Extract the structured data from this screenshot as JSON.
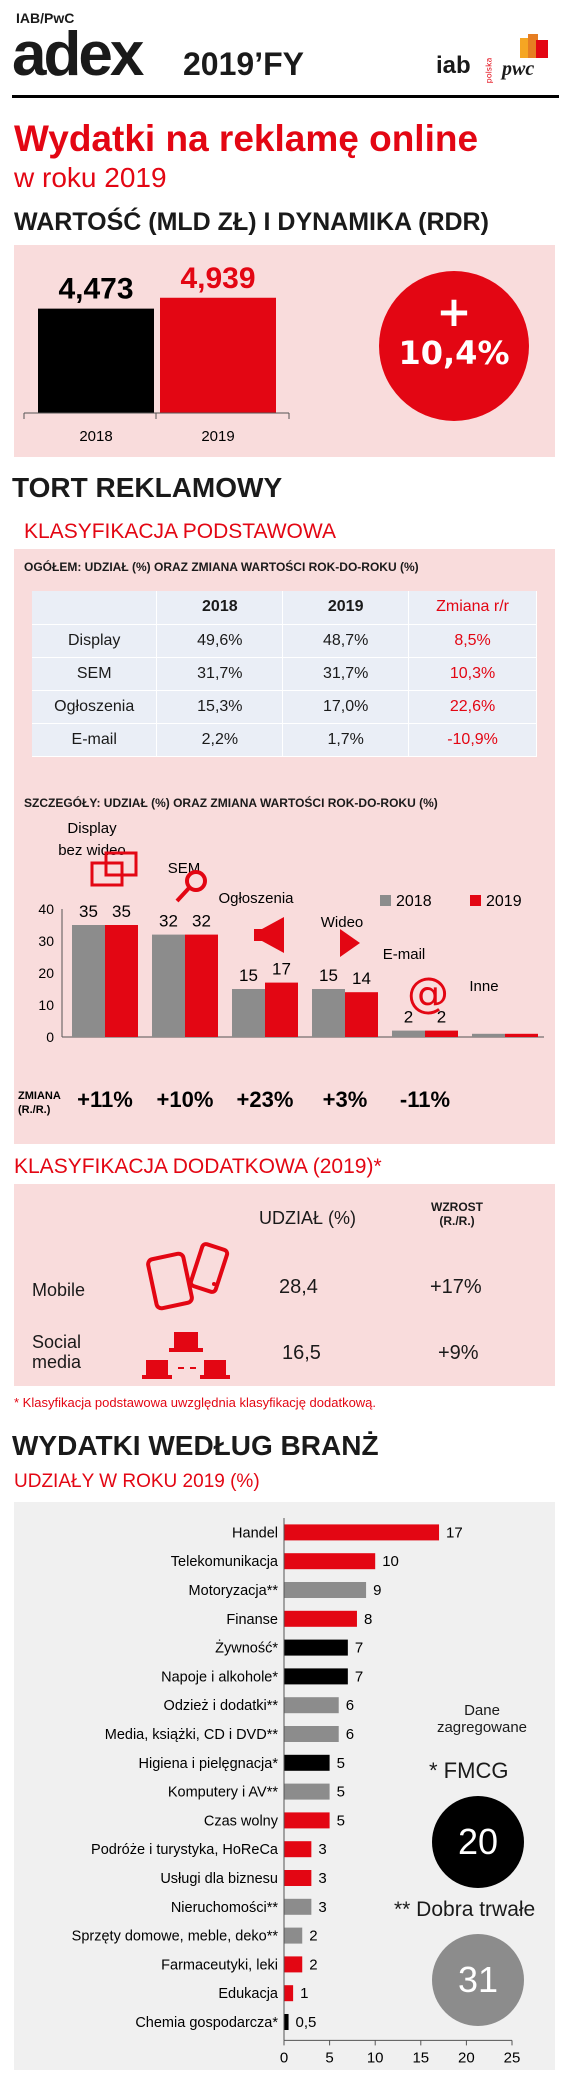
{
  "header": {
    "source": "IAB/PwC",
    "logo": "adex",
    "edition": "2019’FY",
    "iab_logo": "iab",
    "iab_sub": "polska",
    "pwc_logo": "pwc"
  },
  "main_title": "Wydatki na reklamę online",
  "main_subtitle": "w roku 2019",
  "value_section": {
    "title": "WARTOŚĆ (MLD ZŁ) I DYNAMIKA (RDR)",
    "bars": [
      {
        "year": "2018",
        "value": 4.473,
        "label": "4,473",
        "color": "#000000"
      },
      {
        "year": "2019",
        "value": 4.939,
        "label": "4,939",
        "color": "#e30613"
      }
    ],
    "growth_plus": "+",
    "growth_value": "10,4%"
  },
  "pie_section": {
    "title": "TORT REKLAMOWY",
    "basic_title": "KLASYFIKACJA PODSTAWOWA",
    "overall_title": "OGÓŁEM: UDZIAŁ (%) ORAZ ZMIANA WARTOŚCI ROK-DO-ROKU (%)",
    "table": {
      "headers": [
        "",
        "2018",
        "2019",
        "Zmiana r/r"
      ],
      "rows": [
        [
          "Display",
          "49,6%",
          "48,7%",
          "8,5%"
        ],
        [
          "SEM",
          "31,7%",
          "31,7%",
          "10,3%"
        ],
        [
          "Ogłoszenia",
          "15,3%",
          "17,0%",
          "22,6%"
        ],
        [
          "E-mail",
          "2,2%",
          "1,7%",
          "-10,9%"
        ]
      ]
    },
    "detail_title": "SZCZEGÓŁY: UDZIAŁ (%) ORAZ ZMIANA WARTOŚCI ROK-DO-ROKU (%)",
    "change_label_1": "ZMIANA",
    "change_label_2": "(R./R.)"
  },
  "chart_data": [
    {
      "type": "bar",
      "categories": [
        "2018",
        "2019"
      ],
      "values": [
        4.473,
        4.939
      ],
      "title": "WARTOŚĆ (MLD ZŁ) I DYNAMIKA (RDR)"
    },
    {
      "type": "bar",
      "categories": [
        "Display bez wideo",
        "SEM",
        "Ogłoszenia",
        "Wideo",
        "E-mail",
        "Inne"
      ],
      "category_labels": [
        [
          "Display",
          "bez wideo"
        ],
        [
          "SEM"
        ],
        [
          "Ogłoszenia"
        ],
        [
          "Wideo"
        ],
        [
          "E-mail"
        ],
        [
          "Inne"
        ]
      ],
      "series": [
        {
          "name": "2018",
          "color": "#8c8c8c",
          "values": [
            35,
            32,
            15,
            15,
            2,
            1
          ],
          "labels": [
            "35",
            "32",
            "15",
            "15",
            "2",
            ""
          ]
        },
        {
          "name": "2019",
          "color": "#e30613",
          "values": [
            35,
            32,
            17,
            14,
            2,
            1
          ],
          "labels": [
            "35",
            "32",
            "17",
            "14",
            "2",
            ""
          ]
        }
      ],
      "changes": [
        "+11%",
        "+10%",
        "+23%",
        "+3%",
        "-11%",
        ""
      ],
      "ylim": [
        0,
        40
      ],
      "yticks": [
        "0",
        "10",
        "20",
        "30",
        "40"
      ],
      "title": "SZCZEGÓŁY: UDZIAŁ (%) ORAZ ZMIANA WARTOŚCI ROK-DO-ROKU (%)",
      "legend": "top-right"
    },
    {
      "type": "bar",
      "orientation": "horizontal",
      "title": "UDZIAŁY W ROKU 2019 (%)",
      "categories": [
        "Handel",
        "Telekomunikacja",
        "Motoryzacja**",
        "Finanse",
        "Żywność*",
        "Napoje i alkohole*",
        "Odzież i dodatki**",
        "Media, książki, CD i DVD**",
        "Higiena i pielęgnacja*",
        "Komputery i AV**",
        "Czas wolny",
        "Podróże i turystyka, HoReCa",
        "Usługi dla biznesu",
        "Nieruchomości**",
        "Sprzęty domowe, meble, deko**",
        "Farmaceutyki, leki",
        "Edukacja",
        "Chemia gospodarcza*"
      ],
      "values": [
        17,
        10,
        9,
        8,
        7,
        7,
        6,
        6,
        5,
        5,
        5,
        3,
        3,
        3,
        2,
        2,
        1,
        0.5
      ],
      "labels": [
        "17",
        "10",
        "9",
        "8",
        "7",
        "7",
        "6",
        "6",
        "5",
        "5",
        "5",
        "3",
        "3",
        "3",
        "2",
        "2",
        "1",
        "0,5"
      ],
      "colors": [
        "#e30613",
        "#e30613",
        "#8c8c8c",
        "#e30613",
        "#000000",
        "#000000",
        "#8c8c8c",
        "#8c8c8c",
        "#000000",
        "#8c8c8c",
        "#e30613",
        "#e30613",
        "#e30613",
        "#8c8c8c",
        "#8c8c8c",
        "#e30613",
        "#e30613",
        "#000000"
      ],
      "xlim": [
        0,
        25
      ],
      "xticks": [
        "0",
        "5",
        "10",
        "15",
        "20",
        "25"
      ]
    }
  ],
  "additional": {
    "title": "KLASYFIKACJA DODATKOWA (2019)*",
    "col_share": "UDZIAŁ (%)",
    "col_growth_1": "WZROST",
    "col_growth_2": "(R./R.)",
    "rows": [
      {
        "label_1": "Mobile",
        "label_2": "",
        "share": "28,4",
        "growth": "+17%"
      },
      {
        "label_1": "Social",
        "label_2": "media",
        "share": "16,5",
        "growth": "+9%"
      }
    ],
    "footnote": "* Klasyfikacja podstawowa uwzględnia klasyfikację dodatkową."
  },
  "industry": {
    "title": "WYDATKI WEDŁUG BRANŻ",
    "subtitle": "UDZIAŁY W ROKU 2019 (%)",
    "agg_title_1": "Dane",
    "agg_title_2": "zagregowane",
    "fmcg_label": "* FMCG",
    "fmcg_value": "20",
    "durable_label": "** Dobra trwałe",
    "durable_value": "31"
  },
  "colors": {
    "accent": "#e30613",
    "gray": "#8c8c8c",
    "pink": "#f9dcdc",
    "table_bg": "#eaeef6"
  }
}
